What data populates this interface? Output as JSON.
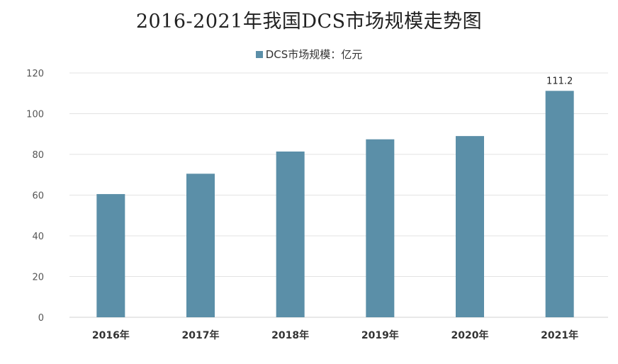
{
  "title": "2016-2021年我国DCS市场规模走势图",
  "colors": {
    "bar": "#5b8fa8",
    "grid": "#e3e3e3",
    "axis": "#d0d0d0"
  },
  "chart_data": {
    "type": "bar",
    "title": "2016-2021年我国DCS市场规模走势图",
    "categories": [
      "2016年",
      "2017年",
      "2018年",
      "2019年",
      "2020年",
      "2021年"
    ],
    "series": [
      {
        "name": "DCS市场规模：亿元",
        "values": [
          60.5,
          70.5,
          81.4,
          87.4,
          89.0,
          111.2
        ]
      }
    ],
    "data_labels": {
      "5": "111.2"
    },
    "yticks": [
      "0",
      "20",
      "40",
      "60",
      "80",
      "100",
      "120"
    ],
    "ylim": [
      0,
      120
    ],
    "grid": true,
    "legend_position": "top-center",
    "xlabel": "",
    "ylabel": ""
  }
}
